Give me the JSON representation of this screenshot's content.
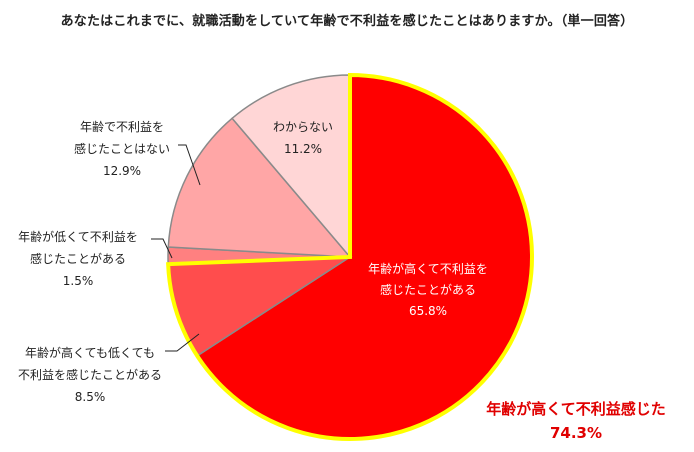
{
  "chart_data": {
    "type": "pie",
    "title": "あなたはこれまでに、就職活動をしていて年齢で不利益を感じたことはありますか。（単一回答）",
    "slices": [
      {
        "label_lines": [
          "年齢が高くて不利益を",
          "感じたことがある"
        ],
        "pct_text": "65.8%",
        "value": 65.8,
        "color": "#ff0000"
      },
      {
        "label_lines": [
          "年齢が高くても低くても",
          "不利益を感じたことがある"
        ],
        "pct_text": "8.5%",
        "value": 8.5,
        "color": "#ff4d4d"
      },
      {
        "label_lines": [
          "年齢が低くて不利益を",
          "感じたことがある"
        ],
        "pct_text": "1.5%",
        "value": 1.5,
        "color": "#ff8080"
      },
      {
        "label_lines": [
          "年齢で不利益を",
          "感じたことはない"
        ],
        "pct_text": "12.9%",
        "value": 12.9,
        "color": "#ffa6a6"
      },
      {
        "label_lines": [
          "わからない"
        ],
        "pct_text": "11.2%",
        "value": 11.2,
        "color": "#ffd6d6"
      }
    ],
    "highlight": {
      "label": "年齢が高くて不利益感じた",
      "value_text": "74.3%",
      "value": 74.3,
      "border_color": "#ffff00",
      "text_color": "#e00000"
    }
  }
}
